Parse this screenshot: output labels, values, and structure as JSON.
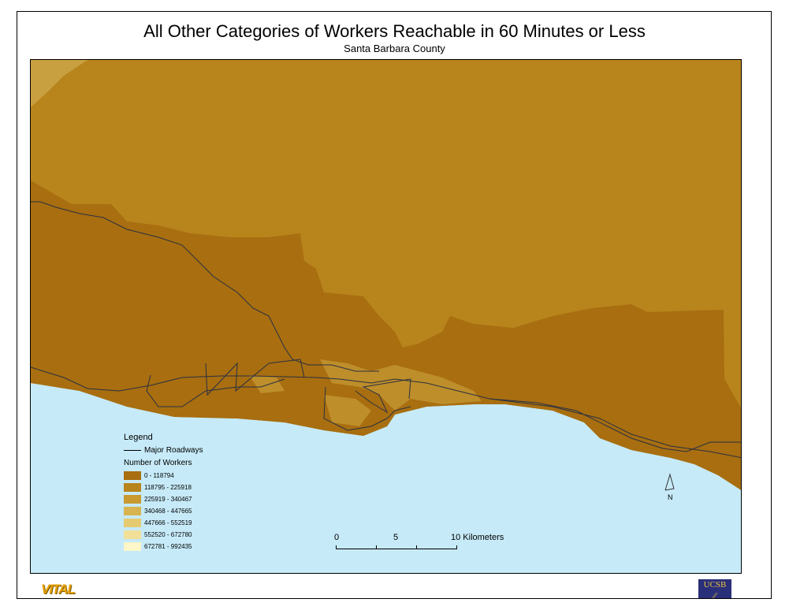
{
  "title": "All Other Categories of Workers Reachable in 60 Minutes or Less",
  "subtitle": "Santa Barbara County",
  "legend": {
    "heading": "Legend",
    "roads_label": "Major Roadways",
    "classes_heading": "Number of Workers",
    "classes": [
      {
        "label": "0 - 118794",
        "color": "#a86e10"
      },
      {
        "label": "118795 - 225918",
        "color": "#b8841c"
      },
      {
        "label": "225919 - 340467",
        "color": "#c89a30"
      },
      {
        "label": "340468 - 447665",
        "color": "#d8b450"
      },
      {
        "label": "447666 - 552519",
        "color": "#e6ca70"
      },
      {
        "label": "552520 - 672780",
        "color": "#f2e098"
      },
      {
        "label": "672781 - 992435",
        "color": "#fcf6c8"
      }
    ]
  },
  "scale_bar": {
    "labels": [
      "0",
      "5",
      "10 Kilometers"
    ]
  },
  "north_arrow": {
    "label": "N"
  },
  "logos": {
    "left": "VITAL",
    "right": "UCSB"
  },
  "colors": {
    "ocean": "#c6eaf8",
    "roads": "#2a3040"
  }
}
